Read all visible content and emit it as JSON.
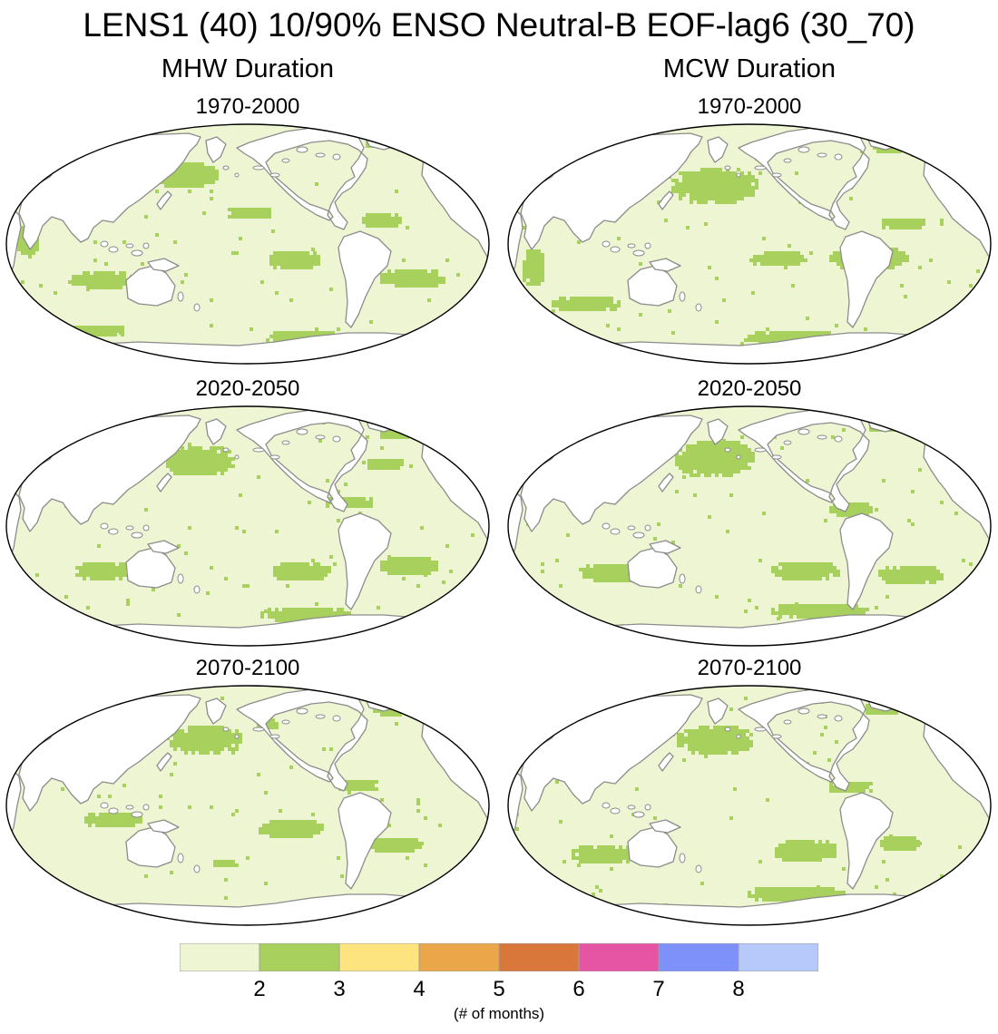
{
  "title": "LENS1 (40) 10/90% ENSO Neutral-B EOF-lag6 (30_70)",
  "columns": [
    {
      "title": "MHW Duration",
      "panels": [
        {
          "title": "1970-2000"
        },
        {
          "title": "2020-2050"
        },
        {
          "title": "2070-2100"
        }
      ]
    },
    {
      "title": "MCW Duration",
      "panels": [
        {
          "title": "1970-2000"
        },
        {
          "title": "2020-2050"
        },
        {
          "title": "2070-2100"
        }
      ]
    }
  ],
  "colorbar": {
    "colors": [
      "#eef5d3",
      "#a8d05c",
      "#fde47f",
      "#eba649",
      "#d9773a",
      "#e654a4",
      "#7e91fa",
      "#b7c8fb"
    ],
    "tick_labels": [
      "2",
      "3",
      "4",
      "5",
      "6",
      "7",
      "8"
    ],
    "label": "(# of months)"
  },
  "map_colors": {
    "ocean_base": "#eef5d3",
    "anomaly": "#a8d05c",
    "land": "#ffffff",
    "coast": "#8c8c8c"
  }
}
